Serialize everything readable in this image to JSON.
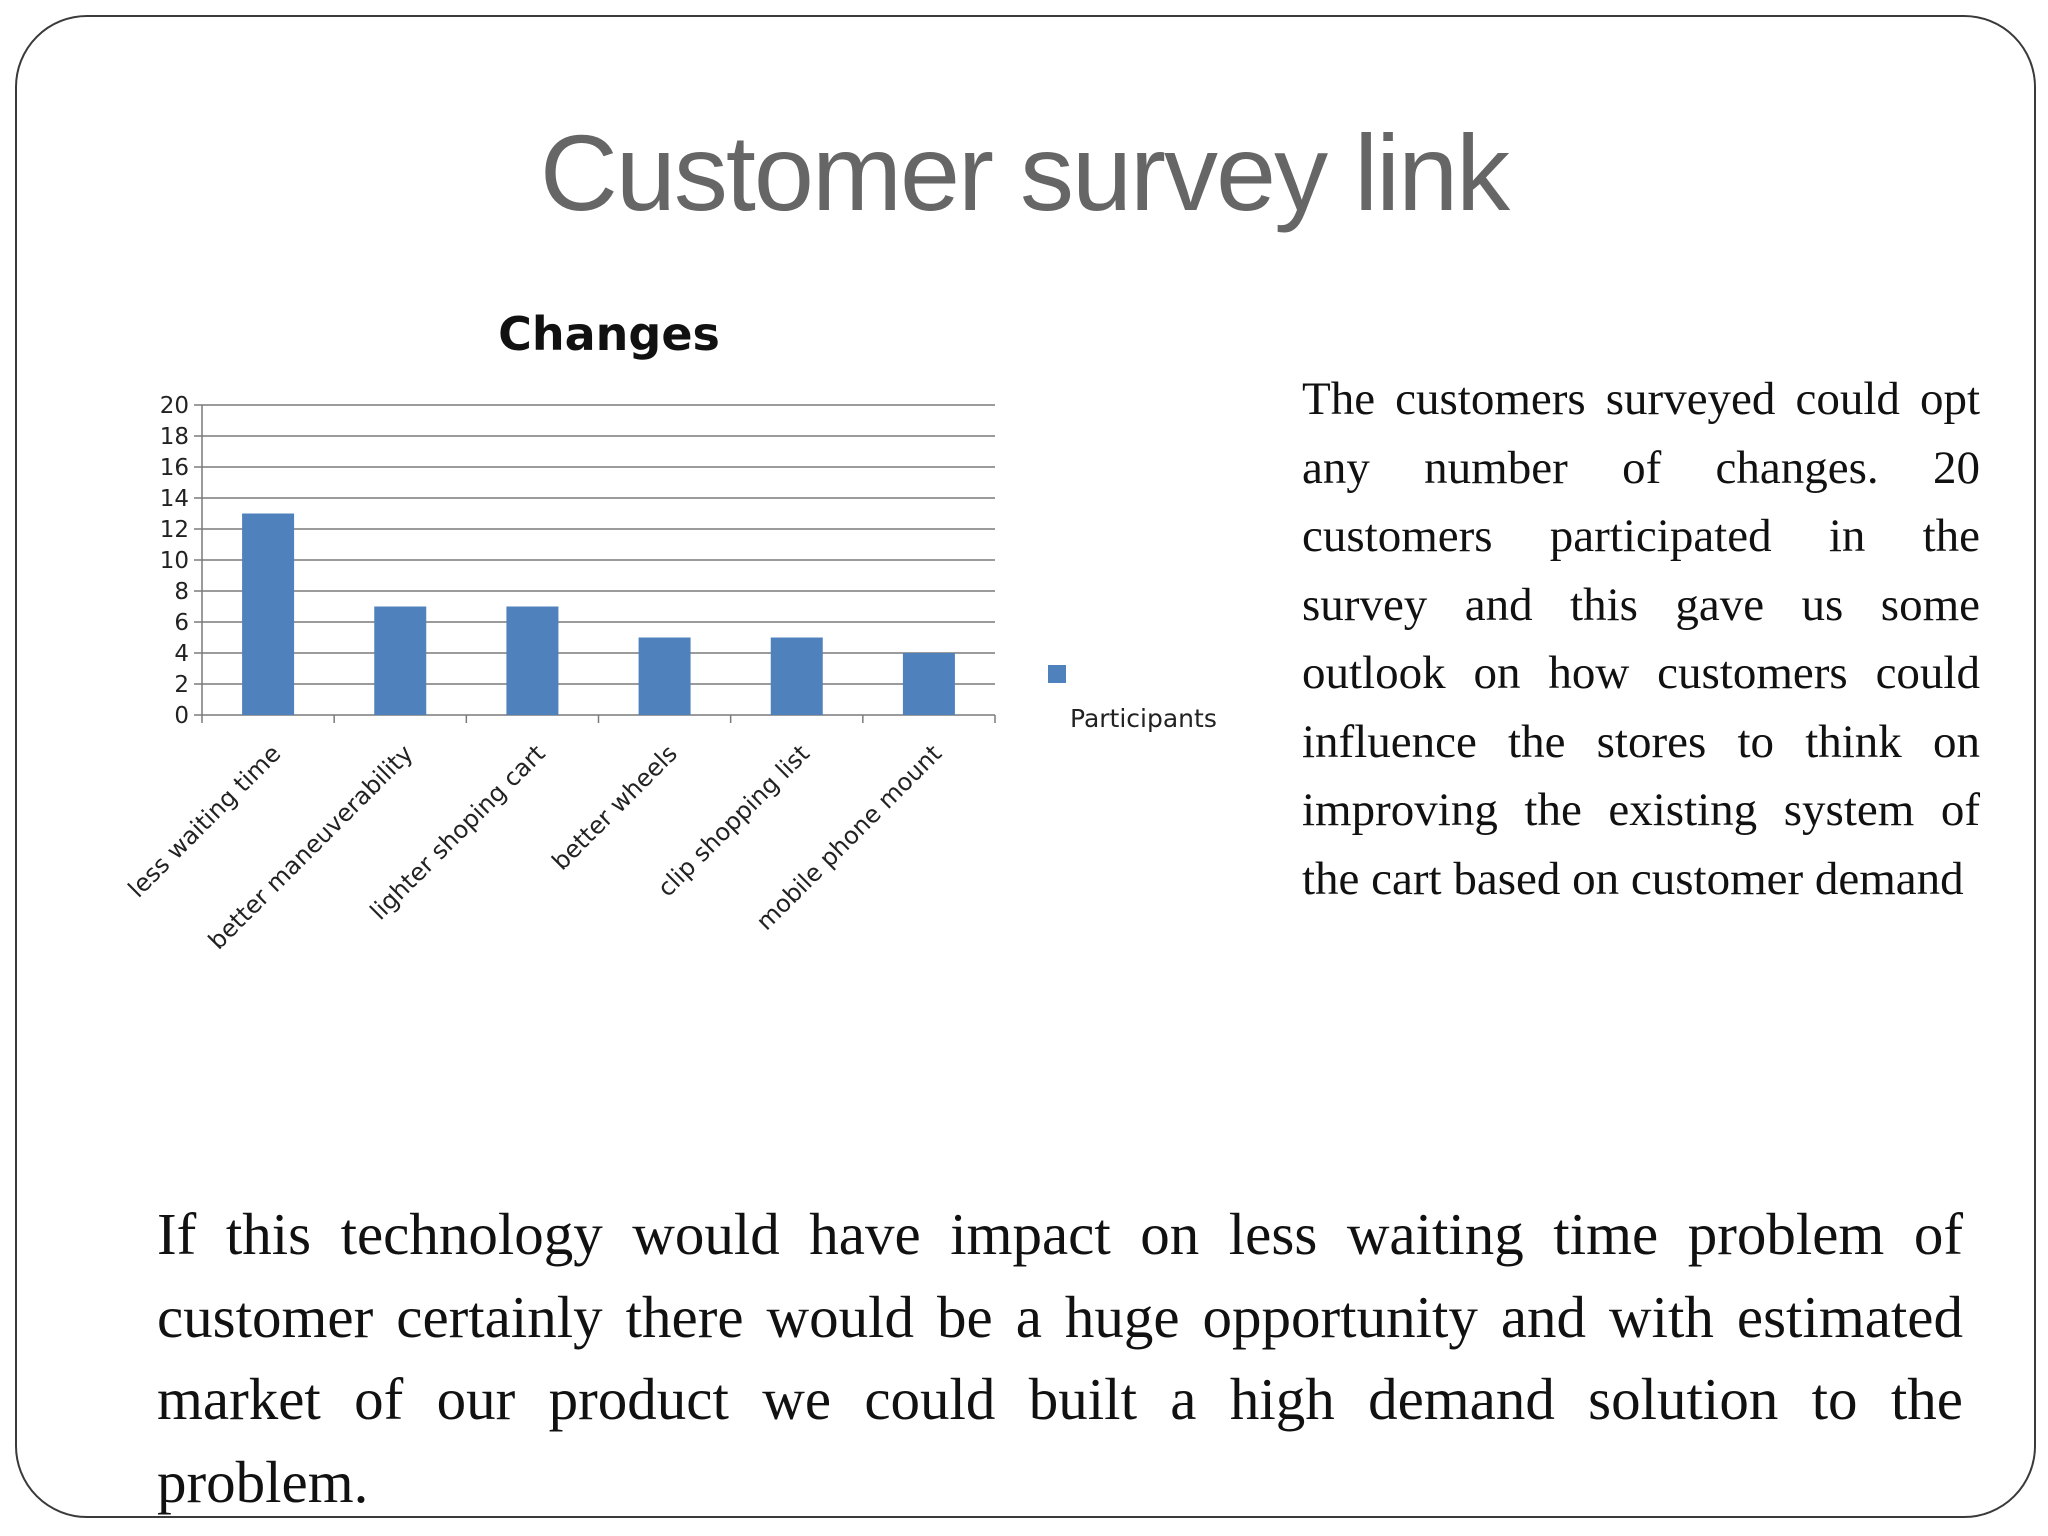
{
  "slide": {
    "title": "Customer survey link",
    "side_text": "The customers surveyed could opt any number of changes. 20 customers participated in the survey and this gave us some outlook on how customers could influence the stores to think on improving the existing system of the cart based on customer demand",
    "bottom_text": "If this technology would have impact on less waiting time problem of customer certainly there would be a huge opportunity and with estimated market of our product we could built a high demand solution to the problem."
  },
  "chart_data": {
    "type": "bar",
    "title": "Changes",
    "categories": [
      "less waiting time",
      "better maneuverability",
      "lighter shoping cart",
      "better wheels",
      "clip shopping list",
      "mobile phone mount"
    ],
    "series": [
      {
        "name": "Participants",
        "values": [
          13,
          7,
          7,
          5,
          5,
          4
        ],
        "color": "#4f81bd"
      }
    ],
    "y_ticks": [
      0,
      2,
      4,
      6,
      8,
      10,
      12,
      14,
      16,
      18,
      20
    ],
    "ylim": [
      0,
      20
    ],
    "grid": true,
    "legend": "right"
  }
}
